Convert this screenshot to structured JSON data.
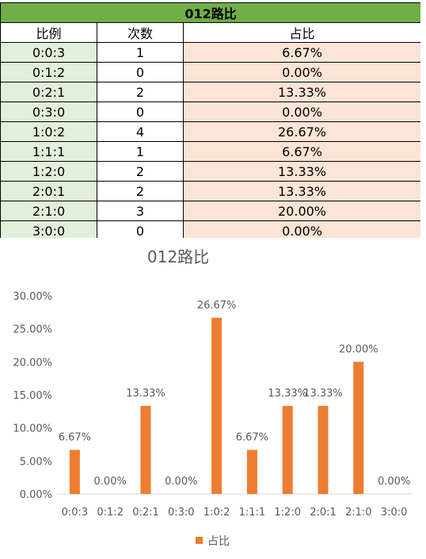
{
  "table": {
    "title": "012路比",
    "headers": [
      "比例",
      "次数",
      "占比"
    ],
    "rows": [
      {
        "ratio": "0:0:3",
        "count": "1",
        "pct": "6.67%"
      },
      {
        "ratio": "0:1:2",
        "count": "0",
        "pct": "0.00%"
      },
      {
        "ratio": "0:2:1",
        "count": "2",
        "pct": "13.33%"
      },
      {
        "ratio": "0:3:0",
        "count": "0",
        "pct": "0.00%"
      },
      {
        "ratio": "1:0:2",
        "count": "4",
        "pct": "26.67%"
      },
      {
        "ratio": "1:1:1",
        "count": "1",
        "pct": "6.67%"
      },
      {
        "ratio": "1:2:0",
        "count": "2",
        "pct": "13.33%"
      },
      {
        "ratio": "2:0:1",
        "count": "2",
        "pct": "13.33%"
      },
      {
        "ratio": "2:1:0",
        "count": "3",
        "pct": "20.00%"
      },
      {
        "ratio": "3:0:0",
        "count": "0",
        "pct": "0.00%"
      }
    ]
  },
  "colors": {
    "title_bg": "#70ad47",
    "ratio_bg": "#e2efda",
    "pct_bg": "#fce4d6",
    "bar": "#ed7d31",
    "axis_text": "#595959"
  },
  "chart_data": {
    "type": "bar",
    "title": "012路比",
    "categories": [
      "0:0:3",
      "0:1:2",
      "0:2:1",
      "0:3:0",
      "1:0:2",
      "1:1:1",
      "1:2:0",
      "2:0:1",
      "2:1:0",
      "3:0:0"
    ],
    "series": [
      {
        "name": "占比",
        "values": [
          6.67,
          0,
          13.33,
          0,
          26.67,
          6.67,
          13.33,
          13.33,
          20.0,
          0
        ]
      }
    ],
    "data_labels": [
      "6.67%",
      "0.00%",
      "13.33%",
      "0.00%",
      "26.67%",
      "6.67%",
      "13.33%",
      "13.33%",
      "20.00%",
      "0.00%"
    ],
    "y_ticks": [
      "0.00%",
      "5.00%",
      "10.00%",
      "15.00%",
      "20.00%",
      "25.00%",
      "30.00%"
    ],
    "ylim": [
      0,
      30
    ],
    "grid": false,
    "legend": "bottom"
  }
}
